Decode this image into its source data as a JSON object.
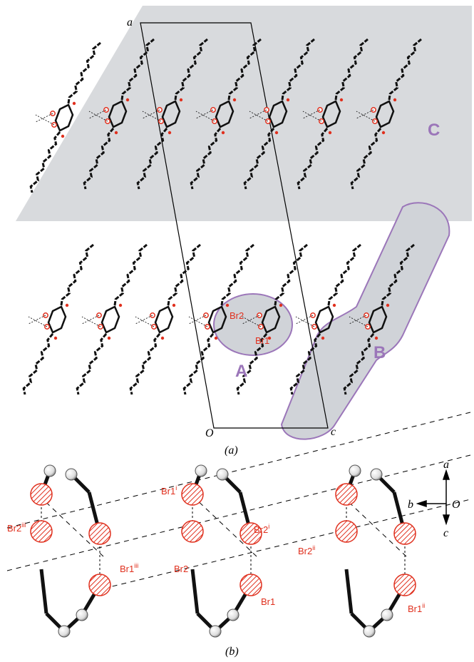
{
  "panel_a": {
    "caption": "(a)",
    "cell_labels": {
      "a": "a",
      "origin": "O",
      "c": "c"
    },
    "regions": {
      "A": "A",
      "B": "B",
      "C": "C"
    },
    "atoms": {
      "br1": "Br1",
      "br2": "Br2"
    }
  },
  "panel_b": {
    "caption": "(b)",
    "axes": {
      "a": "a",
      "b": "b",
      "c": "c",
      "origin": "O"
    },
    "atoms": {
      "br2_iii": {
        "base": "Br2",
        "sup": "iii"
      },
      "br1_iii": {
        "base": "Br1",
        "sup": "iii"
      },
      "br1_i": {
        "base": "Br1",
        "sup": "i"
      },
      "br2_i": {
        "base": "Br2",
        "sup": "i"
      },
      "br2": {
        "base": "Br2",
        "sup": ""
      },
      "br1": {
        "base": "Br1",
        "sup": ""
      },
      "br2_ii": {
        "base": "Br2",
        "sup": "ii"
      },
      "br1_ii": {
        "base": "Br1",
        "sup": "ii"
      }
    }
  },
  "colors": {
    "region_fill": "#d8dadd",
    "region_outline": "#9b76b9",
    "bromine": "#e0301e",
    "chain": "#111111"
  }
}
